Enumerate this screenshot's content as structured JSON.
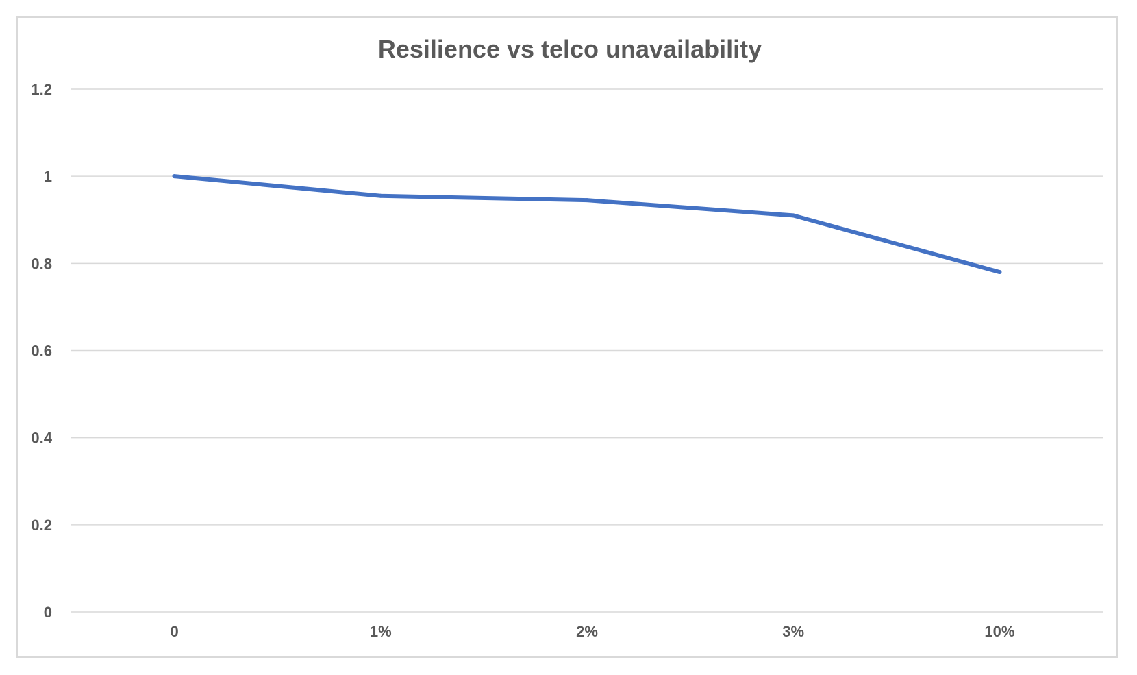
{
  "chart_data": {
    "type": "line",
    "title": "Resilience vs telco unavailability",
    "xlabel": "",
    "ylabel": "",
    "categories": [
      "0",
      "1%",
      "2%",
      "3%",
      "10%"
    ],
    "series": [
      {
        "name": "Resilience",
        "values": [
          1.0,
          0.955,
          0.945,
          0.91,
          0.78
        ],
        "color": "#4472c4"
      }
    ],
    "ylim": [
      0,
      1.2
    ],
    "y_ticks": [
      "0",
      "0.2",
      "0.4",
      "0.6",
      "0.8",
      "1",
      "1.2"
    ],
    "y_tick_values": [
      0,
      0.2,
      0.4,
      0.6,
      0.8,
      1.0,
      1.2
    ],
    "grid": true,
    "legend": "none"
  }
}
